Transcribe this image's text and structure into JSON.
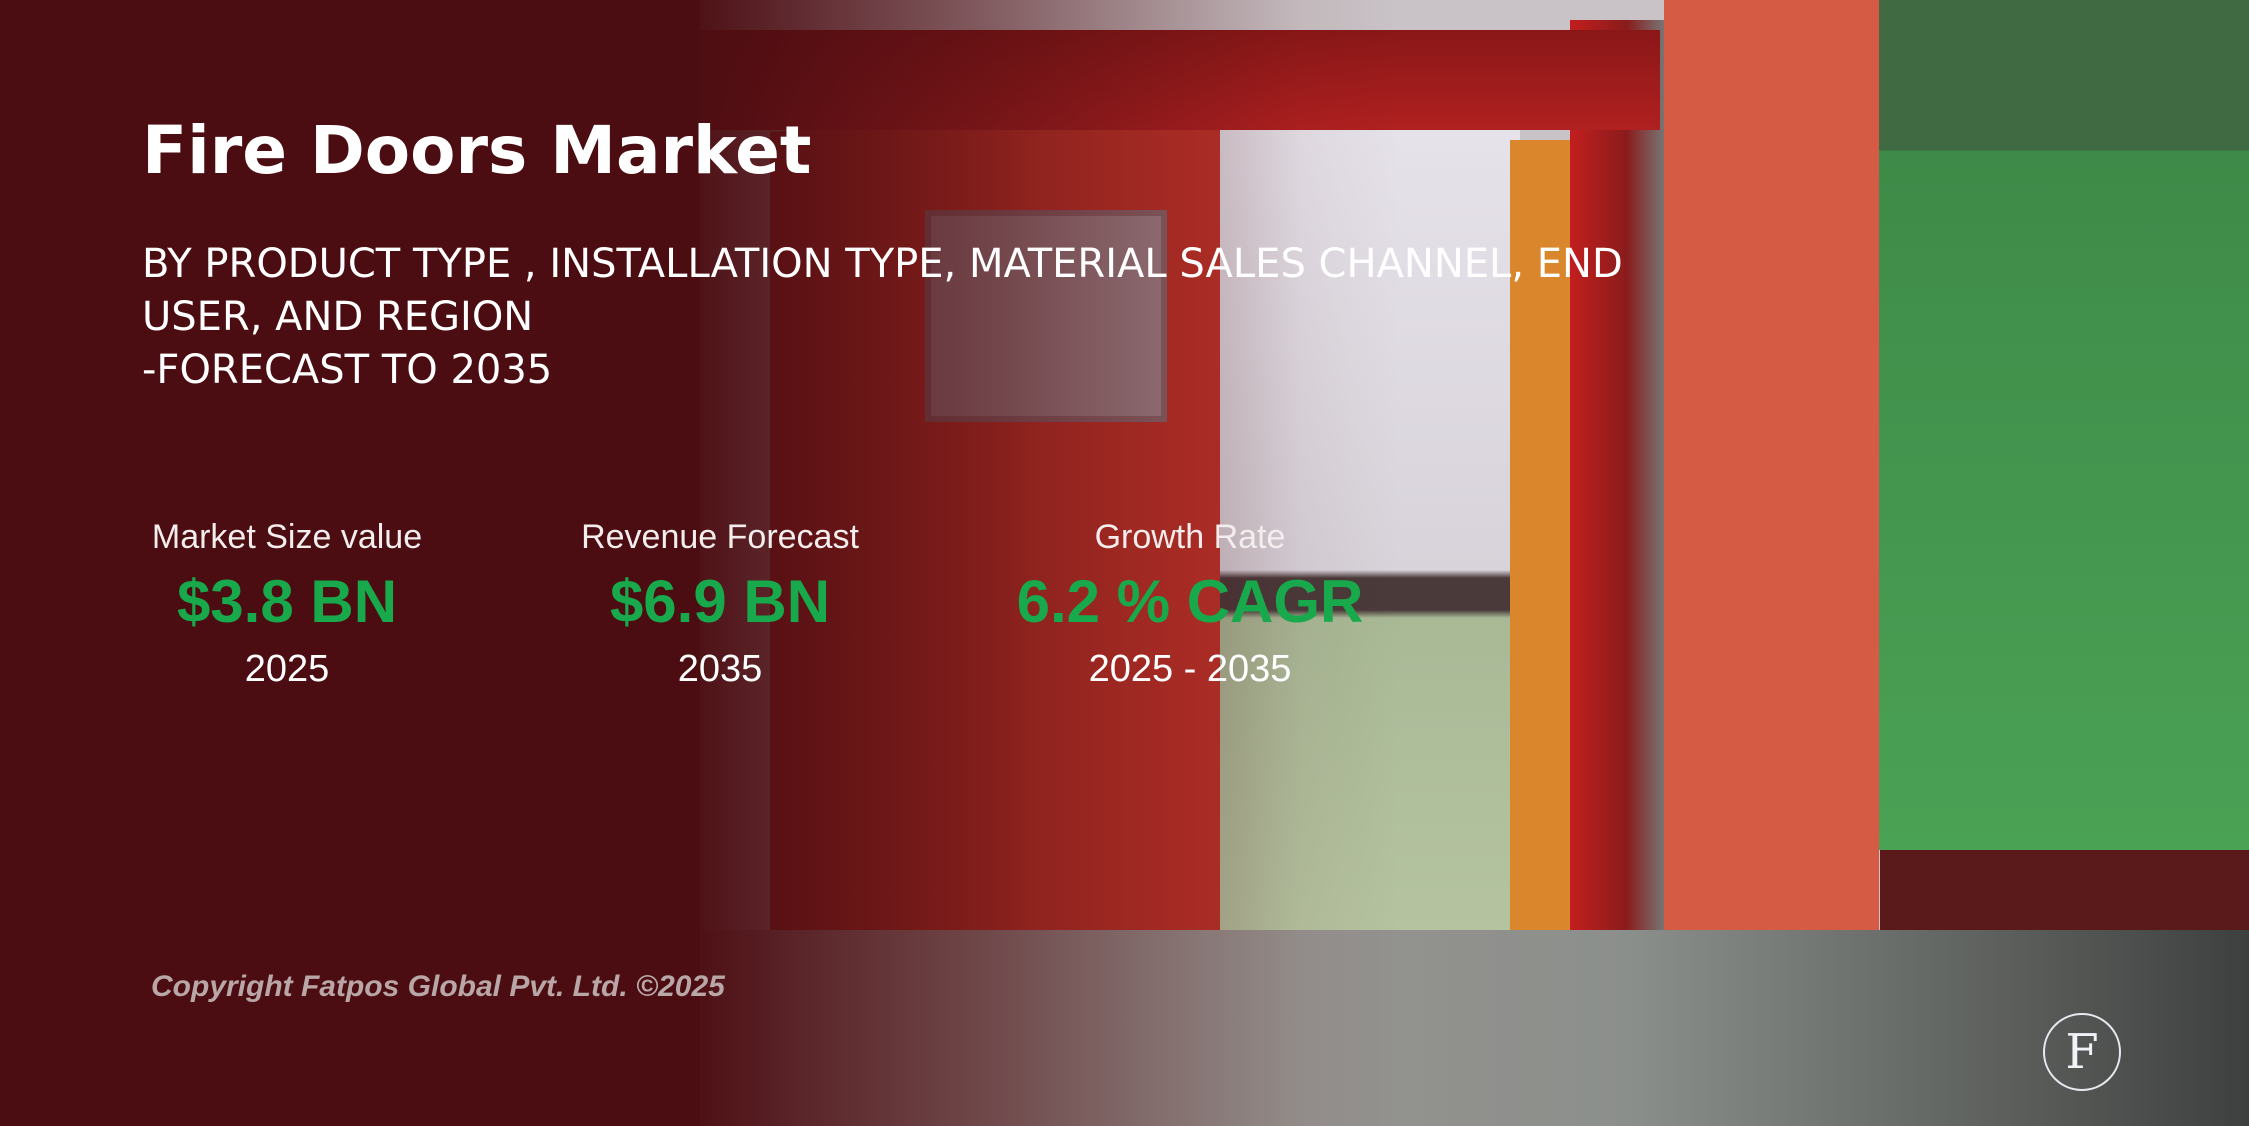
{
  "header": {
    "title": "Fire Doors Market",
    "subtitle": "BY PRODUCT TYPE , INSTALLATION TYPE, MATERIAL SALES CHANNEL, END USER, AND REGION",
    "forecast": "-FORECAST TO 2035"
  },
  "metrics": [
    {
      "label": "Market Size value",
      "value": "$3.8 BN",
      "period": "2025"
    },
    {
      "label": "Revenue Forecast",
      "value": "$6.9 BN",
      "period": "2035"
    },
    {
      "label": "Growth Rate",
      "value": "6.2 % CAGR",
      "period": "2025 - 2035"
    }
  ],
  "footer": {
    "copyright": "Copyright Fatpos Global Pvt. Ltd. ©2025",
    "logo": "F"
  }
}
